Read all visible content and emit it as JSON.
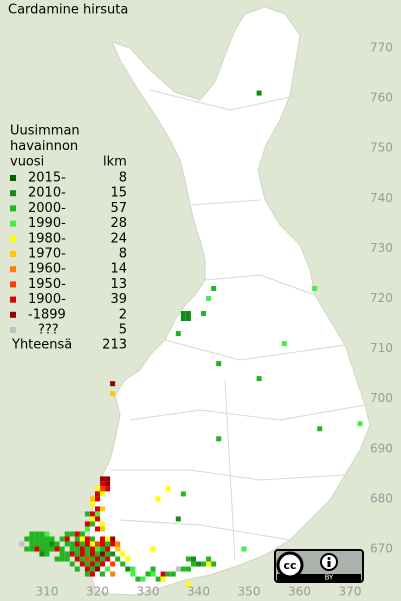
{
  "title": "Cardamine hirsuta",
  "legend": {
    "heading": [
      "Uusimman",
      "havainnon",
      "vuosi"
    ],
    "count_heading": "lkm",
    "classes": [
      {
        "label": "2015-",
        "count": 8,
        "color": "#006400"
      },
      {
        "label": "2010-",
        "count": 15,
        "color": "#138a13"
      },
      {
        "label": "2000-",
        "count": 57,
        "color": "#22b422"
      },
      {
        "label": "1990-",
        "count": 28,
        "color": "#44ee44"
      },
      {
        "label": "1980-",
        "count": 24,
        "color": "#ffff00"
      },
      {
        "label": "1970-",
        "count": 8,
        "color": "#ffc800"
      },
      {
        "label": "1960-",
        "count": 14,
        "color": "#ff8000"
      },
      {
        "label": "1950-",
        "count": 13,
        "color": "#ff3c00"
      },
      {
        "label": "1900-",
        "count": 39,
        "color": "#dc0000"
      },
      {
        "label": "-1899",
        "count": 2,
        "color": "#960000"
      },
      {
        "label": "???",
        "count": 5,
        "color": "#c0c0c0"
      }
    ],
    "total_label": "Yhteensä",
    "total": 213
  },
  "x_axis": [
    310,
    320,
    330,
    340,
    350,
    360,
    370
  ],
  "y_axis": [
    670,
    680,
    690,
    700,
    710,
    720,
    730,
    740,
    750,
    760,
    770
  ],
  "license": {
    "cc": "cc",
    "by": "BY"
  },
  "squares": [
    [
      352,
      761,
      1
    ],
    [
      343,
      722,
      2
    ],
    [
      342,
      720,
      3
    ],
    [
      363,
      722,
      3
    ],
    [
      337,
      717,
      1
    ],
    [
      338,
      717,
      1
    ],
    [
      337,
      716,
      1
    ],
    [
      338,
      716,
      1
    ],
    [
      341,
      717,
      2
    ],
    [
      336,
      713,
      2
    ],
    [
      357,
      711,
      3
    ],
    [
      344,
      707,
      2
    ],
    [
      352,
      704,
      2
    ],
    [
      323,
      703,
      9
    ],
    [
      323,
      701,
      5
    ],
    [
      364,
      694,
      2
    ],
    [
      372,
      695,
      3
    ],
    [
      344,
      692,
      2
    ],
    [
      337,
      681,
      2
    ],
    [
      334,
      682,
      4
    ],
    [
      332,
      680,
      4
    ],
    [
      336,
      676,
      1
    ],
    [
      331,
      670,
      4
    ],
    [
      349,
      670,
      3
    ],
    [
      321,
      684,
      9
    ],
    [
      322,
      684,
      9
    ],
    [
      321,
      683,
      8
    ],
    [
      322,
      683,
      9
    ],
    [
      320,
      682,
      4
    ],
    [
      321,
      682,
      7
    ],
    [
      322,
      682,
      8
    ],
    [
      320,
      681,
      8
    ],
    [
      321,
      681,
      4
    ],
    [
      319,
      680,
      5
    ],
    [
      320,
      680,
      8
    ],
    [
      319,
      679,
      4
    ],
    [
      320,
      678,
      8
    ],
    [
      321,
      678,
      5
    ],
    [
      318,
      677,
      2
    ],
    [
      319,
      677,
      8
    ],
    [
      320,
      677,
      3
    ],
    [
      319,
      676,
      4
    ],
    [
      320,
      676,
      8
    ],
    [
      318,
      675,
      8
    ],
    [
      319,
      675,
      2
    ],
    [
      321,
      675,
      4
    ],
    [
      318,
      674,
      3
    ],
    [
      320,
      674,
      8
    ],
    [
      321,
      674,
      5
    ],
    [
      307,
      673,
      2
    ],
    [
      308,
      673,
      2
    ],
    [
      309,
      673,
      2
    ],
    [
      310,
      673,
      3
    ],
    [
      314,
      673,
      2
    ],
    [
      315,
      673,
      2
    ],
    [
      316,
      673,
      8
    ],
    [
      317,
      673,
      2
    ],
    [
      306,
      672,
      2
    ],
    [
      307,
      672,
      2
    ],
    [
      308,
      672,
      2
    ],
    [
      309,
      672,
      2
    ],
    [
      310,
      672,
      2
    ],
    [
      311,
      672,
      2
    ],
    [
      313,
      672,
      2
    ],
    [
      314,
      672,
      8
    ],
    [
      316,
      672,
      2
    ],
    [
      317,
      672,
      4
    ],
    [
      318,
      672,
      8
    ],
    [
      319,
      672,
      2
    ],
    [
      321,
      672,
      8
    ],
    [
      322,
      672,
      4
    ],
    [
      323,
      672,
      9
    ],
    [
      305,
      671,
      10
    ],
    [
      307,
      671,
      2
    ],
    [
      308,
      671,
      2
    ],
    [
      309,
      671,
      2
    ],
    [
      310,
      671,
      2
    ],
    [
      311,
      671,
      1
    ],
    [
      312,
      671,
      2
    ],
    [
      314,
      671,
      2
    ],
    [
      315,
      671,
      2
    ],
    [
      316,
      671,
      8
    ],
    [
      317,
      671,
      2
    ],
    [
      318,
      671,
      8
    ],
    [
      319,
      671,
      4
    ],
    [
      320,
      671,
      7
    ],
    [
      321,
      671,
      8
    ],
    [
      322,
      671,
      2
    ],
    [
      323,
      671,
      8
    ],
    [
      324,
      671,
      6
    ],
    [
      306,
      670,
      2
    ],
    [
      307,
      670,
      2
    ],
    [
      308,
      670,
      8
    ],
    [
      309,
      670,
      2
    ],
    [
      310,
      670,
      2
    ],
    [
      311,
      670,
      2
    ],
    [
      312,
      670,
      8
    ],
    [
      313,
      670,
      2
    ],
    [
      315,
      670,
      2
    ],
    [
      316,
      670,
      2
    ],
    [
      317,
      670,
      8
    ],
    [
      318,
      670,
      2
    ],
    [
      319,
      670,
      8
    ],
    [
      320,
      670,
      3
    ],
    [
      321,
      670,
      2
    ],
    [
      322,
      670,
      8
    ],
    [
      324,
      670,
      5
    ],
    [
      309,
      669,
      1
    ],
    [
      310,
      669,
      2
    ],
    [
      313,
      669,
      2
    ],
    [
      314,
      669,
      2
    ],
    [
      315,
      669,
      8
    ],
    [
      316,
      669,
      2
    ],
    [
      317,
      669,
      8
    ],
    [
      318,
      669,
      2
    ],
    [
      319,
      669,
      8
    ],
    [
      320,
      669,
      2
    ],
    [
      321,
      669,
      9
    ],
    [
      322,
      669,
      2
    ],
    [
      323,
      669,
      1
    ],
    [
      325,
      669,
      4
    ],
    [
      312,
      668,
      2
    ],
    [
      313,
      668,
      2
    ],
    [
      314,
      668,
      2
    ],
    [
      316,
      668,
      8
    ],
    [
      317,
      668,
      2
    ],
    [
      318,
      668,
      7
    ],
    [
      319,
      668,
      2
    ],
    [
      320,
      668,
      8
    ],
    [
      321,
      668,
      2
    ],
    [
      322,
      668,
      8
    ],
    [
      324,
      668,
      2
    ],
    [
      326,
      668,
      4
    ],
    [
      315,
      667,
      2
    ],
    [
      317,
      667,
      8
    ],
    [
      318,
      667,
      2
    ],
    [
      319,
      667,
      8
    ],
    [
      320,
      667,
      2
    ],
    [
      321,
      667,
      8
    ],
    [
      323,
      667,
      7
    ],
    [
      325,
      667,
      2
    ],
    [
      316,
      666,
      2
    ],
    [
      318,
      666,
      8
    ],
    [
      319,
      666,
      2
    ],
    [
      320,
      666,
      9
    ],
    [
      322,
      666,
      3
    ],
    [
      326,
      666,
      1
    ],
    [
      318,
      665,
      2
    ],
    [
      319,
      665,
      8
    ],
    [
      321,
      665,
      2
    ],
    [
      323,
      665,
      6
    ],
    [
      327,
      665,
      3
    ],
    [
      328,
      664,
      2
    ],
    [
      329,
      664,
      3
    ],
    [
      330,
      665,
      2
    ],
    [
      331,
      665,
      3
    ],
    [
      332,
      664,
      2
    ],
    [
      333,
      665,
      8
    ],
    [
      334,
      665,
      2
    ],
    [
      335,
      665,
      2
    ],
    [
      336,
      666,
      10
    ],
    [
      337,
      666,
      2
    ],
    [
      338,
      666,
      2
    ],
    [
      338,
      668,
      2
    ],
    [
      339,
      668,
      1
    ],
    [
      339,
      667,
      2
    ],
    [
      340,
      667,
      1
    ],
    [
      341,
      667,
      2
    ],
    [
      342,
      667,
      4
    ],
    [
      342,
      668,
      2
    ],
    [
      343,
      667,
      2
    ],
    [
      338,
      663,
      4
    ],
    [
      333,
      664,
      4
    ],
    [
      327,
      666,
      3
    ],
    [
      331,
      666,
      2
    ]
  ]
}
